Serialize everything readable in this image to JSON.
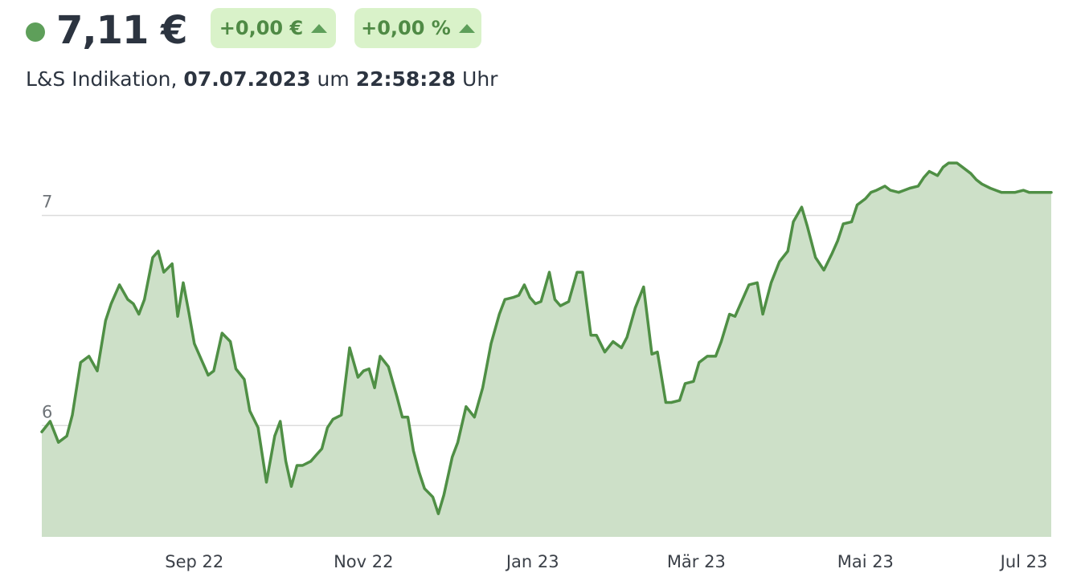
{
  "header": {
    "price": "7,11 €",
    "change_abs": "+0,00 €",
    "change_pct": "+0,00 %",
    "source_label": "L&S Indikation,",
    "date": "07.07.2023",
    "um_label": "um",
    "time": "22:58:28",
    "uhr_label": "Uhr"
  },
  "colors": {
    "line": "#4f8f45",
    "area": "#cde0c8",
    "badge_bg": "#d9f2c9",
    "badge_text": "#4f8a45",
    "live_dot": "#5e9f5a",
    "grid": "#dcdcdc"
  },
  "chart_data": {
    "type": "area",
    "xlabel": "",
    "ylabel": "",
    "ylim": [
      5.47,
      7.3
    ],
    "y_ticks": [
      6,
      7
    ],
    "y_tick_labels": [
      "6",
      "7"
    ],
    "x_tick_labels": [
      {
        "label": "Sep 22",
        "x": "2022-09-01"
      },
      {
        "label": "Nov 22",
        "x": "2022-11-01"
      },
      {
        "label": "Jan 23",
        "x": "2023-01-01"
      },
      {
        "label": "Mär 23",
        "x": "2023-03-01"
      },
      {
        "label": "Mai 23",
        "x": "2023-05-01"
      },
      {
        "label": "Jul 23",
        "x": "2023-07-01"
      }
    ],
    "series": [
      {
        "x": [
          "2022-07-08",
          "2022-07-11",
          "2022-07-14",
          "2022-07-17",
          "2022-07-19",
          "2022-07-22",
          "2022-07-25",
          "2022-07-28",
          "2022-07-31",
          "2022-08-02",
          "2022-08-05",
          "2022-08-08",
          "2022-08-10",
          "2022-08-12",
          "2022-08-14",
          "2022-08-17",
          "2022-08-19",
          "2022-08-21",
          "2022-08-24",
          "2022-08-26",
          "2022-08-28",
          "2022-08-30",
          "2022-09-01",
          "2022-09-04",
          "2022-09-06",
          "2022-09-08",
          "2022-09-11",
          "2022-09-14",
          "2022-09-16",
          "2022-09-19",
          "2022-09-21",
          "2022-09-24",
          "2022-09-27",
          "2022-09-30",
          "2022-10-02",
          "2022-10-04",
          "2022-10-06",
          "2022-10-08",
          "2022-10-10",
          "2022-10-13",
          "2022-10-15",
          "2022-10-17",
          "2022-10-19",
          "2022-10-21",
          "2022-10-24",
          "2022-10-27",
          "2022-10-30",
          "2022-11-01",
          "2022-11-03",
          "2022-11-05",
          "2022-11-07",
          "2022-11-10",
          "2022-11-13",
          "2022-11-15",
          "2022-11-17",
          "2022-11-19",
          "2022-11-21",
          "2022-11-23",
          "2022-11-26",
          "2022-11-28",
          "2022-11-30",
          "2022-12-03",
          "2022-12-05",
          "2022-12-08",
          "2022-12-11",
          "2022-12-14",
          "2022-12-17",
          "2022-12-20",
          "2022-12-22",
          "2022-12-25",
          "2022-12-27",
          "2022-12-29",
          "2022-12-31",
          "2023-01-02",
          "2023-01-04",
          "2023-01-07",
          "2023-01-09",
          "2023-01-11",
          "2023-01-14",
          "2023-01-17",
          "2023-01-19",
          "2023-01-22",
          "2023-01-24",
          "2023-01-27",
          "2023-01-30",
          "2023-02-02",
          "2023-02-04",
          "2023-02-07",
          "2023-02-10",
          "2023-02-13",
          "2023-02-15",
          "2023-02-18",
          "2023-02-20",
          "2023-02-23",
          "2023-02-25",
          "2023-02-28",
          "2023-03-02",
          "2023-03-05",
          "2023-03-08",
          "2023-03-10",
          "2023-03-13",
          "2023-03-15",
          "2023-03-17",
          "2023-03-20",
          "2023-03-23",
          "2023-03-25",
          "2023-03-28",
          "2023-03-31",
          "2023-04-03",
          "2023-04-05",
          "2023-04-08",
          "2023-04-10",
          "2023-04-13",
          "2023-04-16",
          "2023-04-19",
          "2023-04-21",
          "2023-04-23",
          "2023-04-26",
          "2023-04-28",
          "2023-05-01",
          "2023-05-03",
          "2023-05-05",
          "2023-05-08",
          "2023-05-10",
          "2023-05-13",
          "2023-05-15",
          "2023-05-17",
          "2023-05-20",
          "2023-05-22",
          "2023-05-24",
          "2023-05-27",
          "2023-05-29",
          "2023-05-31",
          "2023-06-03",
          "2023-06-05",
          "2023-06-08",
          "2023-06-10",
          "2023-06-12",
          "2023-06-15",
          "2023-06-17",
          "2023-06-19",
          "2023-06-22",
          "2023-06-24",
          "2023-06-27",
          "2023-06-29",
          "2023-07-01",
          "2023-07-03",
          "2023-07-05",
          "2023-07-07"
        ],
        "values": [
          5.97,
          6.02,
          5.92,
          5.95,
          6.05,
          6.3,
          6.33,
          6.26,
          6.5,
          6.58,
          6.67,
          6.6,
          6.58,
          6.53,
          6.6,
          6.8,
          6.83,
          6.73,
          6.77,
          6.52,
          6.68,
          6.54,
          6.39,
          6.3,
          6.24,
          6.26,
          6.44,
          6.4,
          6.27,
          6.22,
          6.07,
          5.99,
          5.73,
          5.95,
          6.02,
          5.83,
          5.71,
          5.81,
          5.81,
          5.83,
          5.86,
          5.89,
          5.99,
          6.03,
          6.05,
          6.37,
          6.23,
          6.26,
          6.27,
          6.18,
          6.33,
          6.28,
          6.14,
          6.04,
          6.04,
          5.88,
          5.78,
          5.7,
          5.66,
          5.58,
          5.67,
          5.85,
          5.92,
          6.09,
          6.04,
          6.18,
          6.39,
          6.53,
          6.6,
          6.61,
          6.62,
          6.67,
          6.61,
          6.58,
          6.59,
          6.73,
          6.6,
          6.57,
          6.59,
          6.73,
          6.73,
          6.43,
          6.43,
          6.35,
          6.4,
          6.37,
          6.42,
          6.56,
          6.66,
          6.34,
          6.35,
          6.11,
          6.11,
          6.12,
          6.2,
          6.21,
          6.3,
          6.33,
          6.33,
          6.4,
          6.53,
          6.52,
          6.58,
          6.67,
          6.68,
          6.53,
          6.68,
          6.78,
          6.83,
          6.97,
          7.04,
          6.95,
          6.8,
          6.74,
          6.82,
          6.88,
          6.96,
          6.97,
          7.05,
          7.08,
          7.11,
          7.12,
          7.14,
          7.12,
          7.11,
          7.12,
          7.13,
          7.14,
          7.18,
          7.21,
          7.19,
          7.23,
          7.25,
          7.25,
          7.23,
          7.2,
          7.17,
          7.15,
          7.13,
          7.12,
          7.11,
          7.11,
          7.11,
          7.12,
          7.11,
          7.11,
          7.11,
          7.11,
          7.11
        ]
      }
    ]
  }
}
